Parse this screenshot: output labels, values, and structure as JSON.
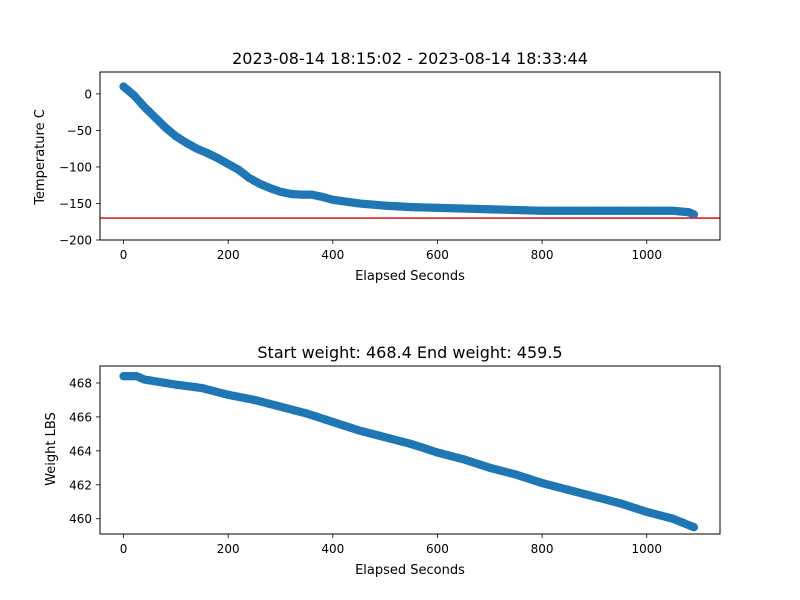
{
  "chart_data": [
    {
      "type": "scatter",
      "title": "2023-08-14 18:15:02 - 2023-08-14 18:33:44",
      "xlabel": "Elapsed Seconds",
      "ylabel": "Temperature C",
      "xlim": [
        -45,
        1140
      ],
      "ylim": [
        -200,
        30
      ],
      "xticks": [
        0,
        200,
        400,
        600,
        800,
        1000
      ],
      "yticks": [
        -200,
        -150,
        -100,
        -50,
        0
      ],
      "xtick_labels": [
        "0",
        "200",
        "400",
        "600",
        "800",
        "1000"
      ],
      "ytick_labels": [
        "−200",
        "−150",
        "−100",
        "−50",
        "0"
      ],
      "grid": false,
      "color": "#1f77b4",
      "reference_line": {
        "y": -170,
        "color": "#d62728"
      },
      "series": [
        {
          "x": [
            0,
            20,
            40,
            60,
            80,
            100,
            120,
            140,
            160,
            180,
            200,
            220,
            240,
            260,
            280,
            300,
            320,
            340,
            360,
            380,
            400,
            450,
            500,
            550,
            600,
            650,
            700,
            750,
            800,
            850,
            900,
            950,
            1000,
            1050,
            1080,
            1090
          ],
          "y": [
            10,
            -2,
            -18,
            -32,
            -46,
            -58,
            -67,
            -75,
            -81,
            -88,
            -96,
            -104,
            -115,
            -123,
            -129,
            -134,
            -137,
            -138,
            -138,
            -141,
            -145,
            -150,
            -153,
            -155,
            -156,
            -157,
            -158,
            -159,
            -160,
            -160,
            -160,
            -160,
            -160,
            -160,
            -162,
            -165
          ]
        }
      ]
    },
    {
      "type": "scatter",
      "title": "Start weight: 468.4 End weight: 459.5",
      "xlabel": "Elapsed Seconds",
      "ylabel": "Weight LBS",
      "xlim": [
        -45,
        1140
      ],
      "ylim": [
        459.1,
        469.0
      ],
      "xticks": [
        0,
        200,
        400,
        600,
        800,
        1000
      ],
      "yticks": [
        460,
        462,
        464,
        466,
        468
      ],
      "xtick_labels": [
        "0",
        "200",
        "400",
        "600",
        "800",
        "1000"
      ],
      "ytick_labels": [
        "460",
        "462",
        "464",
        "466",
        "468"
      ],
      "grid": false,
      "color": "#1f77b4",
      "series": [
        {
          "x": [
            0,
            10,
            25,
            40,
            60,
            80,
            100,
            150,
            200,
            250,
            300,
            350,
            400,
            450,
            500,
            550,
            600,
            650,
            700,
            750,
            800,
            850,
            900,
            950,
            1000,
            1050,
            1090
          ],
          "y": [
            468.4,
            468.4,
            468.4,
            468.2,
            468.1,
            468.0,
            467.9,
            467.7,
            467.3,
            467.0,
            466.6,
            466.2,
            465.7,
            465.2,
            464.8,
            464.4,
            463.9,
            463.5,
            463.0,
            462.6,
            462.1,
            461.7,
            461.3,
            460.9,
            460.4,
            460.0,
            459.5
          ]
        }
      ]
    }
  ]
}
